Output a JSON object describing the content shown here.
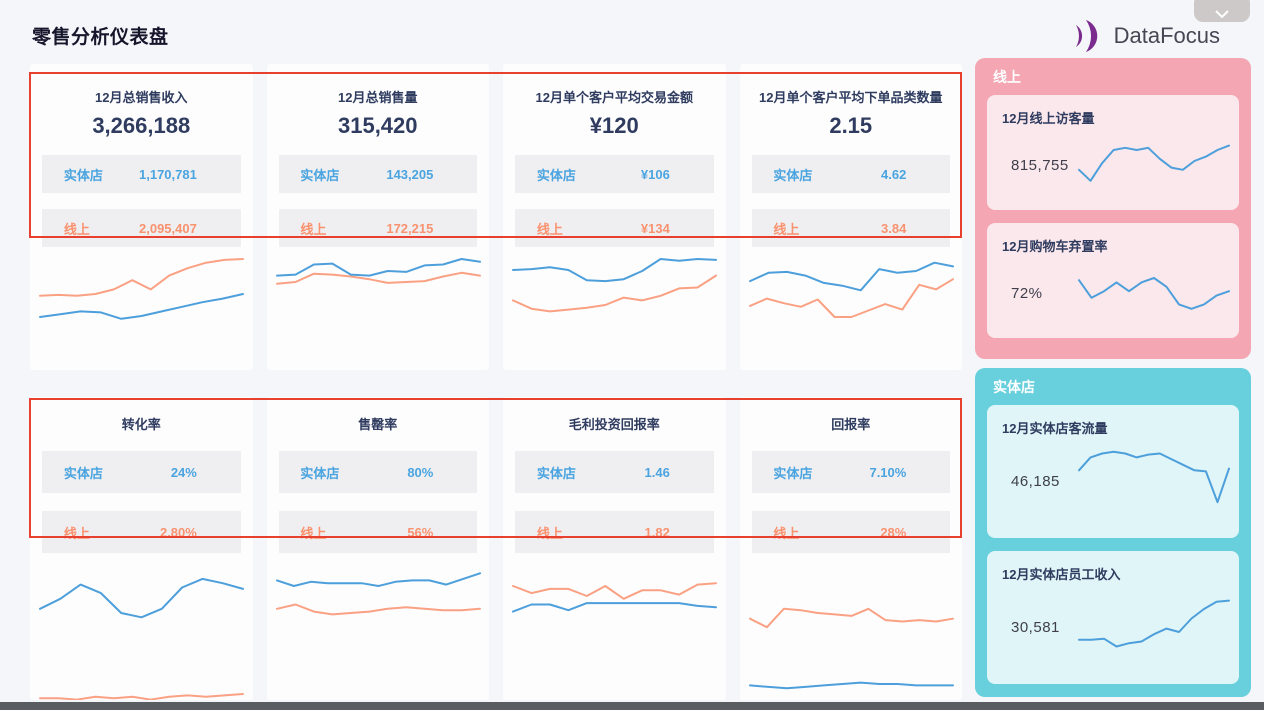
{
  "page": {
    "title": "零售分析仪表盘"
  },
  "logo": {
    "text": "DataFocus",
    "purple": "#7a2b8d"
  },
  "top_button": {
    "icon": "chevron-down"
  },
  "labels": {
    "store": "实体店",
    "online": "线上"
  },
  "colors": {
    "line_blue": "#4d9fdb",
    "line_orange": "#faa183",
    "text_blue": "#4aa4e0",
    "text_orange": "#f9926f",
    "red_annotation": "#e8402f",
    "pink_panel": "#f4a6b2",
    "teal_panel": "#68cfdc"
  },
  "kpi_row1": [
    {
      "title": "12月总销售收入",
      "value": "3,266,188",
      "store_value": "1,170,781",
      "online_value": "2,095,407"
    },
    {
      "title": "12月总销售量",
      "value": "315,420",
      "store_value": "143,205",
      "online_value": "172,215"
    },
    {
      "title": "12月单个客户平均交易金额",
      "value": "¥120",
      "store_value": "¥106",
      "online_value": "¥134"
    },
    {
      "title": "12月单个客户平均下单品类数量",
      "value": "2.15",
      "store_value": "4.62",
      "online_value": "3.84"
    }
  ],
  "kpi_row2": [
    {
      "title": "转化率",
      "store_value": "24%",
      "online_value": "2.80%"
    },
    {
      "title": "售罄率",
      "store_value": "80%",
      "online_value": "56%"
    },
    {
      "title": "毛利投资回报率",
      "store_value": "1.46",
      "online_value": "1.82"
    },
    {
      "title": "回报率",
      "store_value": "7.10%",
      "online_value": "28%"
    }
  ],
  "online_panel": {
    "header": "线上",
    "cards": [
      {
        "title": "12月线上访客量",
        "value": "815,755"
      },
      {
        "title": "12月购物车弃置率",
        "value": "72%"
      }
    ]
  },
  "store_panel": {
    "header": "实体店",
    "cards": [
      {
        "title": "12月实体店客流量",
        "value": "46,185"
      },
      {
        "title": "12月实体店员工收入",
        "value": "30,581"
      }
    ]
  },
  "sparklines": {
    "r1c1": {
      "blue": [
        63,
        60,
        57,
        58,
        65,
        62,
        57,
        52,
        47,
        43,
        38
      ],
      "orange": [
        40,
        39,
        40,
        38,
        33,
        23,
        33,
        18,
        10,
        4,
        1,
        0
      ]
    },
    "r1c2": {
      "blue": [
        18,
        17,
        6,
        5,
        17,
        18,
        13,
        14,
        7,
        6,
        0,
        3
      ],
      "orange": [
        27,
        25,
        16,
        17,
        19,
        22,
        26,
        25,
        24,
        19,
        15,
        18
      ]
    },
    "r1c3": {
      "blue": [
        12,
        11,
        9,
        12,
        23,
        24,
        22,
        13,
        0,
        2,
        0,
        1
      ],
      "orange": [
        45,
        54,
        57,
        55,
        53,
        50,
        42,
        45,
        40,
        32,
        31,
        18
      ]
    },
    "r1c4": {
      "blue": [
        24,
        15,
        14,
        18,
        26,
        29,
        34,
        11,
        15,
        13,
        4,
        8
      ],
      "orange": [
        51,
        43,
        48,
        52,
        44,
        63,
        63,
        56,
        49,
        55,
        28,
        33,
        22
      ]
    },
    "r2c1": {
      "blue": [
        28,
        21,
        11,
        17,
        31,
        34,
        28,
        13,
        7,
        10,
        14
      ],
      "orange": [
        91,
        91,
        92,
        90,
        91,
        90,
        92,
        90,
        89,
        90,
        89,
        88
      ]
    },
    "r2c2": {
      "blue": [
        8,
        12,
        9,
        10,
        10,
        10,
        12,
        9,
        8,
        8,
        11,
        7,
        3
      ],
      "orange": [
        28,
        25,
        30,
        32,
        31,
        30,
        28,
        27,
        28,
        29,
        29,
        28
      ]
    },
    "r2c3": {
      "blue": [
        30,
        25,
        25,
        29,
        24,
        24,
        24,
        24,
        24,
        24,
        26,
        27
      ],
      "orange": [
        12,
        17,
        14,
        14,
        19,
        12,
        21,
        15,
        15,
        18,
        11,
        10
      ]
    },
    "r2c4": {
      "blue": [
        82,
        83,
        84,
        83,
        82,
        81,
        80,
        81,
        81,
        82,
        82,
        82
      ],
      "orange": [
        35,
        41,
        28,
        29,
        31,
        32,
        33,
        28,
        36,
        37,
        36,
        37,
        35
      ]
    },
    "online1": {
      "blue": [
        70,
        95,
        55,
        25,
        20,
        25,
        20,
        45,
        65,
        70,
        50,
        40,
        25,
        15
      ]
    },
    "online2": {
      "blue": [
        30,
        70,
        55,
        35,
        55,
        35,
        25,
        45,
        85,
        95,
        85,
        65,
        55
      ]
    },
    "store1": {
      "blue": [
        38,
        15,
        8,
        5,
        8,
        15,
        10,
        8,
        18,
        28,
        38,
        40,
        95,
        35
      ]
    },
    "store2": {
      "blue": [
        80,
        80,
        78,
        92,
        86,
        83,
        70,
        60,
        66,
        42,
        25,
        12,
        10
      ]
    }
  }
}
